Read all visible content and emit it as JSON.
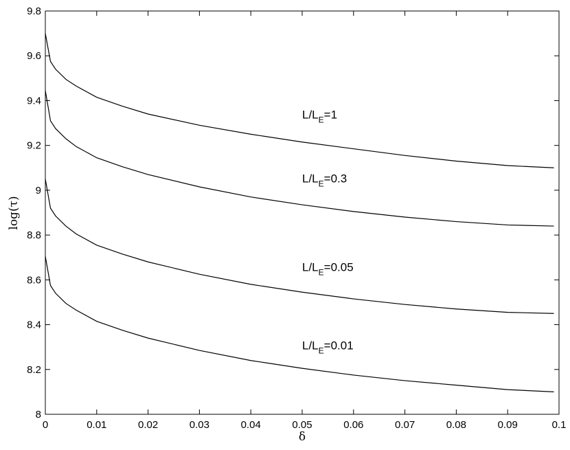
{
  "chart_data": {
    "type": "line",
    "xlabel": "δ",
    "ylabel": "log(τ)",
    "xlim": [
      0,
      0.1
    ],
    "ylim": [
      8,
      9.8
    ],
    "x_ticks": [
      "0",
      "0.01",
      "0.02",
      "0.03",
      "0.04",
      "0.05",
      "0.06",
      "0.07",
      "0.08",
      "0.09",
      "0.1"
    ],
    "y_ticks": [
      "8",
      "8.2",
      "8.4",
      "8.6",
      "8.8",
      "9",
      "9.2",
      "9.4",
      "9.6",
      "9.8"
    ],
    "grid": false,
    "x": [
      0,
      0.001,
      0.002,
      0.004,
      0.006,
      0.01,
      0.015,
      0.02,
      0.03,
      0.04,
      0.05,
      0.06,
      0.07,
      0.08,
      0.09,
      0.099
    ],
    "series": [
      {
        "name": "L/L_E=1",
        "label_prefix": "L/L",
        "label_sub": "E",
        "label_suffix": "=1",
        "values": [
          9.7,
          9.575,
          9.54,
          9.495,
          9.465,
          9.415,
          9.375,
          9.34,
          9.29,
          9.25,
          9.215,
          9.185,
          9.155,
          9.13,
          9.11,
          9.1
        ]
      },
      {
        "name": "L/L_E=0.3",
        "label_prefix": "L/L",
        "label_sub": "E",
        "label_suffix": "=0.3",
        "values": [
          9.445,
          9.31,
          9.275,
          9.23,
          9.195,
          9.145,
          9.105,
          9.07,
          9.015,
          8.97,
          8.935,
          8.905,
          8.88,
          8.86,
          8.845,
          8.84
        ]
      },
      {
        "name": "L/L_E=0.05",
        "label_prefix": "L/L",
        "label_sub": "E",
        "label_suffix": "=0.05",
        "values": [
          9.05,
          8.92,
          8.885,
          8.84,
          8.805,
          8.755,
          8.715,
          8.68,
          8.625,
          8.58,
          8.545,
          8.515,
          8.49,
          8.47,
          8.455,
          8.45
        ]
      },
      {
        "name": "L/L_E=0.01",
        "label_prefix": "L/L",
        "label_sub": "E",
        "label_suffix": "=0.01",
        "values": [
          8.705,
          8.575,
          8.54,
          8.495,
          8.465,
          8.415,
          8.375,
          8.34,
          8.285,
          8.24,
          8.205,
          8.175,
          8.15,
          8.13,
          8.11,
          8.1
        ]
      }
    ],
    "annotations": [
      {
        "series": 0,
        "x": 0.05,
        "y": 9.32
      },
      {
        "series": 1,
        "x": 0.05,
        "y": 9.035
      },
      {
        "series": 2,
        "x": 0.05,
        "y": 8.64
      },
      {
        "series": 3,
        "x": 0.05,
        "y": 8.29
      }
    ]
  }
}
